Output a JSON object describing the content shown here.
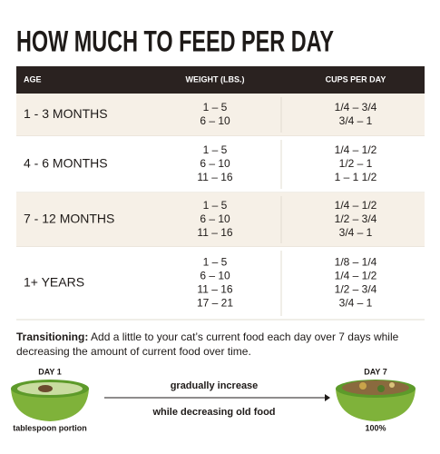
{
  "title": "HOW MUCH TO FEED PER DAY",
  "table": {
    "headers": [
      "AGE",
      "WEIGHT (LBS.)",
      "CUPS PER DAY"
    ],
    "rows": [
      {
        "age": "1 - 3 MONTHS",
        "weights": [
          "1 – 5",
          "6 – 10"
        ],
        "cups": [
          "1/4 – 3/4",
          "3/4 – 1"
        ]
      },
      {
        "age": "4 - 6 MONTHS",
        "weights": [
          "1 – 5",
          "6 – 10",
          "11 – 16"
        ],
        "cups": [
          "1/4 – 1/2",
          "1/2 – 1",
          "1 – 1 1/2"
        ]
      },
      {
        "age": "7 - 12 MONTHS",
        "weights": [
          "1 – 5",
          "6 – 10",
          "11 – 16"
        ],
        "cups": [
          "1/4 – 1/2",
          "1/2 – 3/4",
          "3/4 – 1"
        ]
      },
      {
        "age": "1+ YEARS",
        "weights": [
          "1 – 5",
          "6 – 10",
          "11 – 16",
          "17 – 21"
        ],
        "cups": [
          "1/8 – 1/4",
          "1/4 – 1/2",
          "1/2 – 3/4",
          "3/4 – 1"
        ]
      }
    ]
  },
  "transition": {
    "label": "Transitioning:",
    "lines": [
      "Add a little to your cat’s current food each day over 7 days while",
      "decreasing the amount of current food over time."
    ]
  },
  "diagram": {
    "start_label": "DAY 1",
    "start_caption": "tablespoon portion",
    "arrow_top": "gradually increase",
    "arrow_bottom": "while decreasing old food",
    "end_label": "DAY 7",
    "end_caption": "100%"
  }
}
